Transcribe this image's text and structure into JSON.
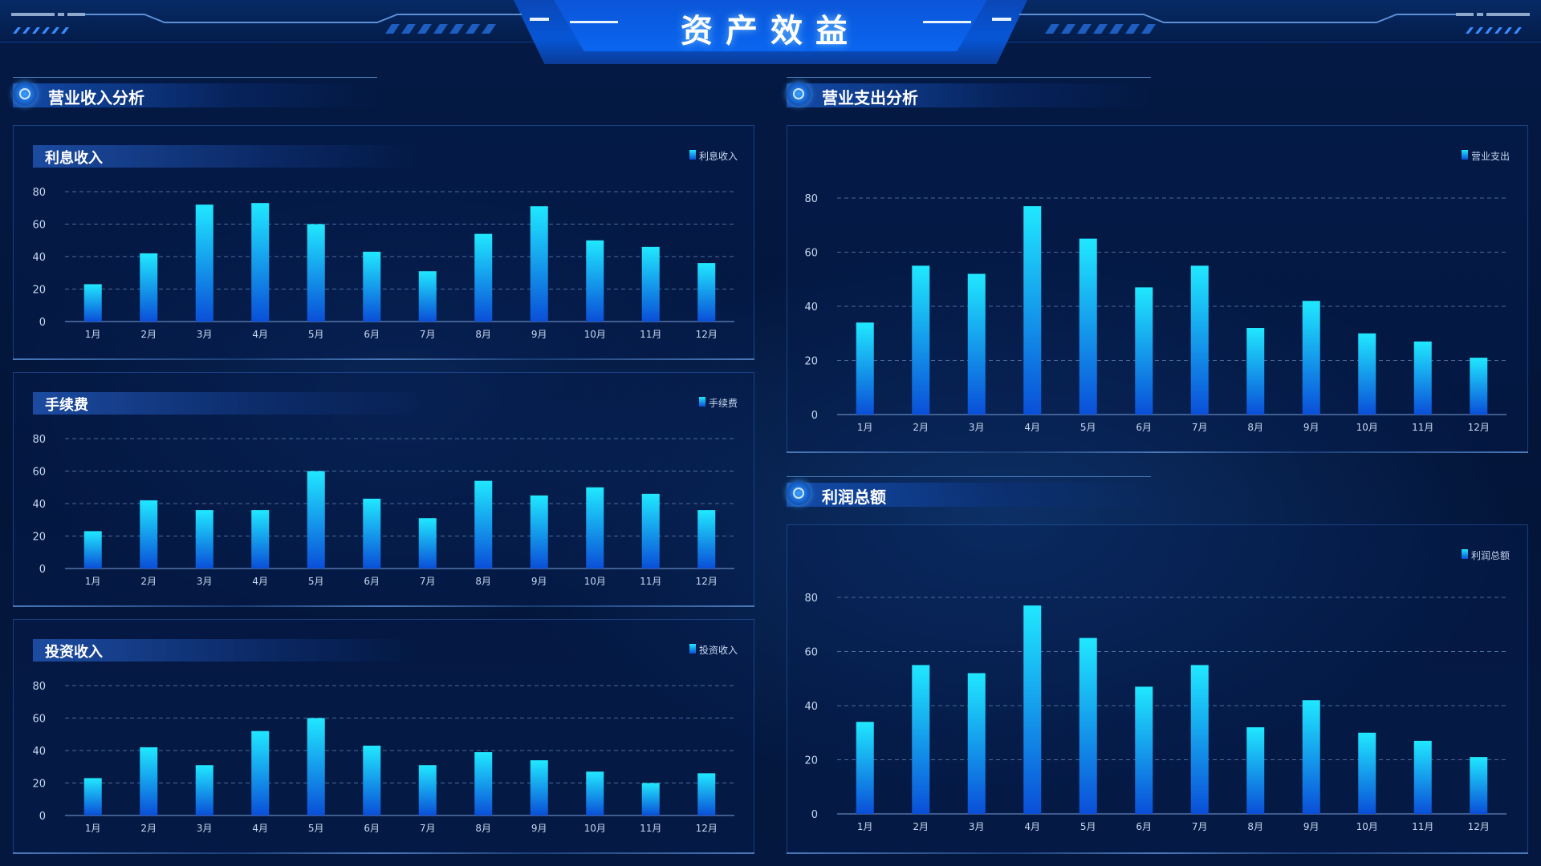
{
  "page": {
    "title": "资产效益"
  },
  "sections": {
    "income": "营业收入分析",
    "expense": "营业支出分析",
    "profit": "利润总额"
  },
  "colors": {
    "bar_top": "#20e8ff",
    "bar_bottom": "#0a4fd8",
    "axis_text": "#c8d8f0",
    "grid": "#4a6a9a"
  },
  "chart_data": [
    {
      "id": "interest",
      "type": "bar",
      "title": "利息收入",
      "legend": [
        "利息收入"
      ],
      "categories": [
        "1月",
        "2月",
        "3月",
        "4月",
        "5月",
        "6月",
        "7月",
        "8月",
        "9月",
        "10月",
        "11月",
        "12月"
      ],
      "series": [
        {
          "name": "利息收入",
          "values": [
            23,
            42,
            72,
            73,
            60,
            43,
            31,
            54,
            71,
            50,
            46,
            36
          ]
        }
      ],
      "yticks": [
        0,
        20,
        40,
        60,
        80
      ],
      "ylim": [
        0,
        80
      ],
      "grid": true,
      "legend_position": "top-right"
    },
    {
      "id": "fee",
      "type": "bar",
      "title": "手续费",
      "legend": [
        "手续费"
      ],
      "categories": [
        "1月",
        "2月",
        "3月",
        "4月",
        "5月",
        "6月",
        "7月",
        "8月",
        "9月",
        "10月",
        "11月",
        "12月"
      ],
      "series": [
        {
          "name": "手续费",
          "values": [
            23,
            42,
            36,
            36,
            60,
            43,
            31,
            54,
            45,
            50,
            46,
            36
          ]
        }
      ],
      "yticks": [
        0,
        20,
        40,
        60,
        80
      ],
      "ylim": [
        0,
        80
      ],
      "grid": true,
      "legend_position": "top-right"
    },
    {
      "id": "invest",
      "type": "bar",
      "title": "投资收入",
      "legend": [
        "投资收入"
      ],
      "categories": [
        "1月",
        "2月",
        "3月",
        "4月",
        "5月",
        "6月",
        "7月",
        "8月",
        "9月",
        "10月",
        "11月",
        "12月"
      ],
      "series": [
        {
          "name": "投资收入",
          "values": [
            23,
            42,
            31,
            52,
            60,
            43,
            31,
            39,
            34,
            27,
            20,
            26
          ]
        }
      ],
      "yticks": [
        0,
        20,
        40,
        60,
        80
      ],
      "ylim": [
        0,
        80
      ],
      "grid": true,
      "legend_position": "top-right"
    },
    {
      "id": "expense",
      "type": "bar",
      "title": "",
      "legend": [
        "营业支出"
      ],
      "categories": [
        "1月",
        "2月",
        "3月",
        "4月",
        "5月",
        "6月",
        "7月",
        "8月",
        "9月",
        "10月",
        "11月",
        "12月"
      ],
      "series": [
        {
          "name": "营业支出",
          "values": [
            34,
            55,
            52,
            77,
            65,
            47,
            55,
            32,
            42,
            30,
            27,
            21
          ]
        }
      ],
      "yticks": [
        0,
        20,
        40,
        60,
        80
      ],
      "ylim": [
        0,
        80
      ],
      "grid": true,
      "legend_position": "top-right"
    },
    {
      "id": "profit",
      "type": "bar",
      "title": "",
      "legend": [
        "利润总额"
      ],
      "categories": [
        "1月",
        "2月",
        "3月",
        "4月",
        "5月",
        "6月",
        "7月",
        "8月",
        "9月",
        "10月",
        "11月",
        "12月"
      ],
      "series": [
        {
          "name": "利润总额",
          "values": [
            34,
            55,
            52,
            77,
            65,
            47,
            55,
            32,
            42,
            30,
            27,
            21
          ]
        }
      ],
      "yticks": [
        0,
        20,
        40,
        60,
        80
      ],
      "ylim": [
        0,
        80
      ],
      "grid": true,
      "legend_position": "top-right"
    }
  ]
}
